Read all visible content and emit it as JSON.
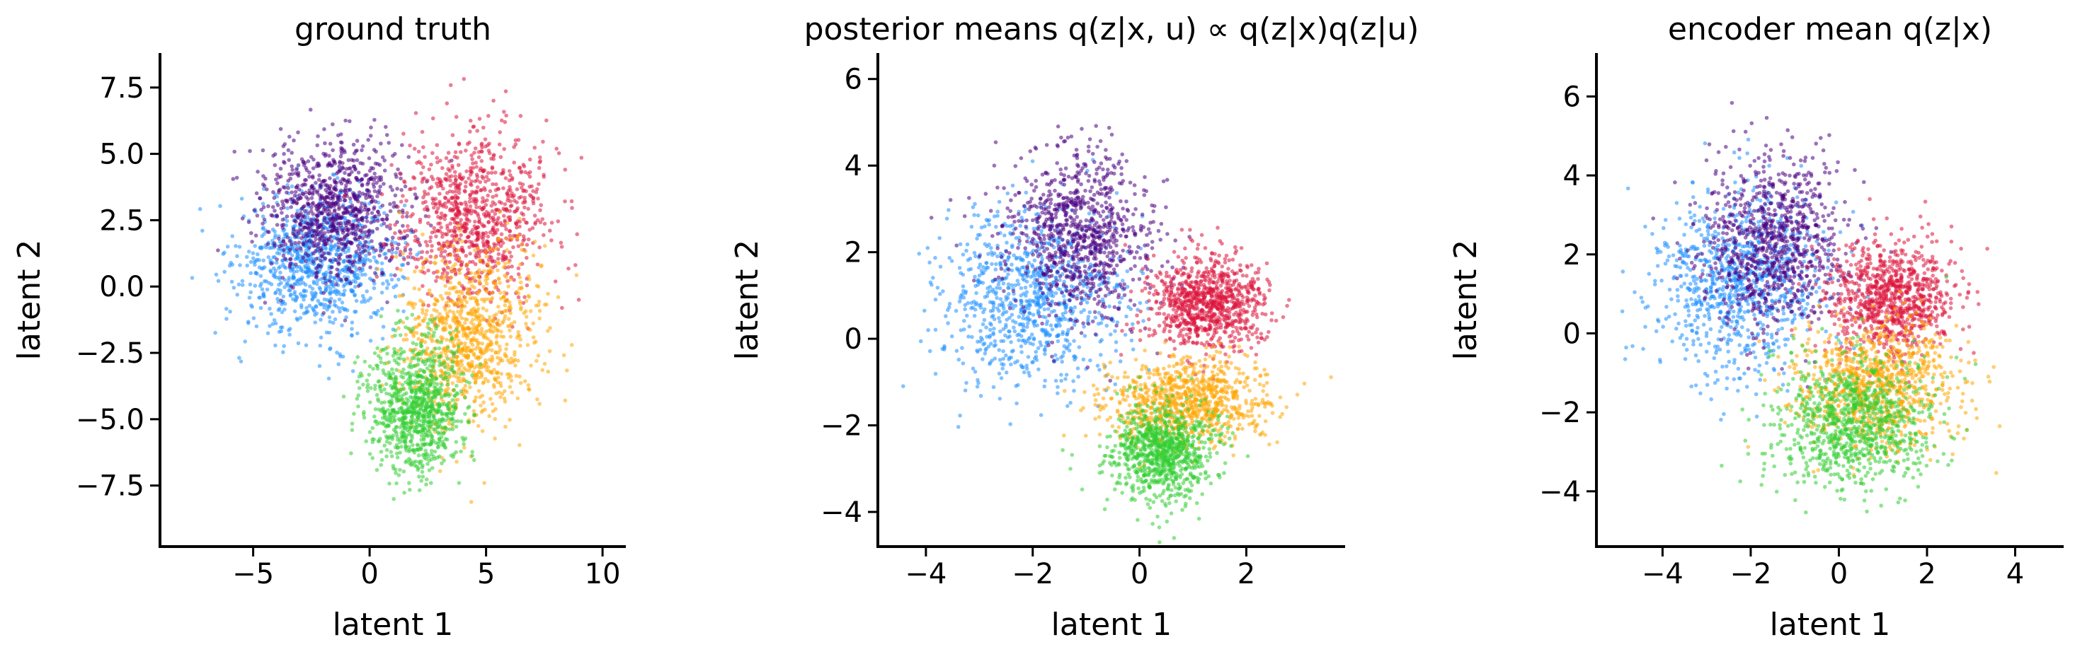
{
  "chart_data": [
    {
      "type": "scatter",
      "title": "ground truth",
      "xlabel": "latent 1",
      "ylabel": "latent 2",
      "xlim": [
        -9,
        11
      ],
      "ylim": [
        -9.8,
        8.8
      ],
      "xticks": [
        -5,
        0,
        5,
        10
      ],
      "xticklabels": [
        "−5",
        "0",
        "5",
        "10"
      ],
      "yticks": [
        -7.5,
        -5.0,
        -2.5,
        0.0,
        2.5,
        5.0,
        7.5
      ],
      "yticklabels": [
        "−7.5",
        "−5.0",
        "−2.5",
        "0.0",
        "2.5",
        "5.0",
        "7.5"
      ],
      "grid": false,
      "clusters": [
        {
          "color": "#1E90FF",
          "center": [
            -2.2,
            0.9
          ],
          "std": [
            1.7,
            1.3
          ],
          "n": 900
        },
        {
          "color": "#4B0082",
          "center": [
            -1.5,
            2.9
          ],
          "std": [
            1.6,
            1.3
          ],
          "n": 900
        },
        {
          "color": "#DC143C",
          "center": [
            4.5,
            2.6
          ],
          "std": [
            1.5,
            1.6
          ],
          "n": 900
        },
        {
          "color": "#FFA500",
          "center": [
            4.3,
            -1.9
          ],
          "std": [
            1.5,
            1.6
          ],
          "n": 900
        },
        {
          "color": "#32CD32",
          "center": [
            2.0,
            -4.6
          ],
          "std": [
            1.0,
            1.3
          ],
          "n": 900
        }
      ]
    },
    {
      "type": "scatter",
      "title": "posterior means q(z|x, u) ∝ q(z|x)q(z|u)",
      "xlabel": "latent 1",
      "ylabel": "latent 2",
      "xlim": [
        -4.9,
        3.85
      ],
      "ylim": [
        -4.8,
        6.6
      ],
      "xticks": [
        -4,
        -2,
        0,
        2
      ],
      "xticklabels": [
        "−4",
        "−2",
        "0",
        "2"
      ],
      "yticks": [
        -4,
        -2,
        0,
        2,
        4,
        6
      ],
      "yticklabels": [
        "−4",
        "−2",
        "0",
        "2",
        "4",
        "6"
      ],
      "grid": false,
      "clusters": [
        {
          "color": "#1E90FF",
          "center": [
            -2.0,
            0.9
          ],
          "std": [
            0.85,
            1.0
          ],
          "n": 900
        },
        {
          "color": "#4B0082",
          "center": [
            -1.1,
            2.4
          ],
          "std": [
            0.7,
            1.0
          ],
          "n": 900
        },
        {
          "color": "#DC143C",
          "center": [
            1.25,
            0.8
          ],
          "std": [
            0.55,
            0.55
          ],
          "n": 900
        },
        {
          "color": "#FFA500",
          "center": [
            0.9,
            -1.5
          ],
          "std": [
            0.75,
            0.5
          ],
          "n": 900
        },
        {
          "color": "#32CD32",
          "center": [
            0.45,
            -2.6
          ],
          "std": [
            0.5,
            0.55
          ],
          "n": 900
        }
      ]
    },
    {
      "type": "scatter",
      "title": "encoder mean q(z|x)",
      "xlabel": "latent 1",
      "ylabel": "latent 2",
      "xlim": [
        -5.5,
        5.1
      ],
      "ylim": [
        -5.4,
        7.1
      ],
      "xticks": [
        -4,
        -2,
        0,
        2,
        4
      ],
      "xticklabels": [
        "−4",
        "−2",
        "0",
        "2",
        "4"
      ],
      "yticks": [
        -4,
        -2,
        0,
        2,
        4,
        6
      ],
      "yticklabels": [
        "−4",
        "−2",
        "0",
        "2",
        "4",
        "6"
      ],
      "grid": false,
      "clusters": [
        {
          "color": "#1E90FF",
          "center": [
            -2.3,
            1.3
          ],
          "std": [
            1.0,
            1.2
          ],
          "n": 900
        },
        {
          "color": "#4B0082",
          "center": [
            -1.5,
            2.3
          ],
          "std": [
            0.8,
            1.1
          ],
          "n": 900
        },
        {
          "color": "#DC143C",
          "center": [
            1.2,
            0.9
          ],
          "std": [
            0.7,
            0.7
          ],
          "n": 900
        },
        {
          "color": "#FFA500",
          "center": [
            0.9,
            -1.3
          ],
          "std": [
            0.9,
            0.8
          ],
          "n": 900
        },
        {
          "color": "#32CD32",
          "center": [
            0.3,
            -2.3
          ],
          "std": [
            0.9,
            0.85
          ],
          "n": 900
        }
      ]
    }
  ]
}
